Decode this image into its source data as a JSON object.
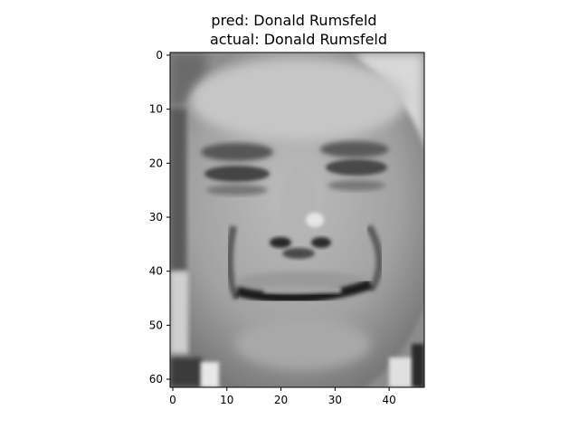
{
  "chart_data": {
    "type": "heatmap",
    "title_lines": [
      "pred: Donald Rumsfeld",
      "actual: Donald Rumsfeld"
    ],
    "colormap": "gray",
    "image_shape": [
      62,
      47
    ],
    "x_ticks": [
      0,
      10,
      20,
      30,
      40
    ],
    "y_ticks": [
      0,
      10,
      20,
      30,
      40,
      50,
      60
    ],
    "xlim": [
      -0.5,
      46.5
    ],
    "ylim": [
      61.5,
      -0.5
    ],
    "xlabel": "",
    "ylabel": "",
    "grid": false
  }
}
